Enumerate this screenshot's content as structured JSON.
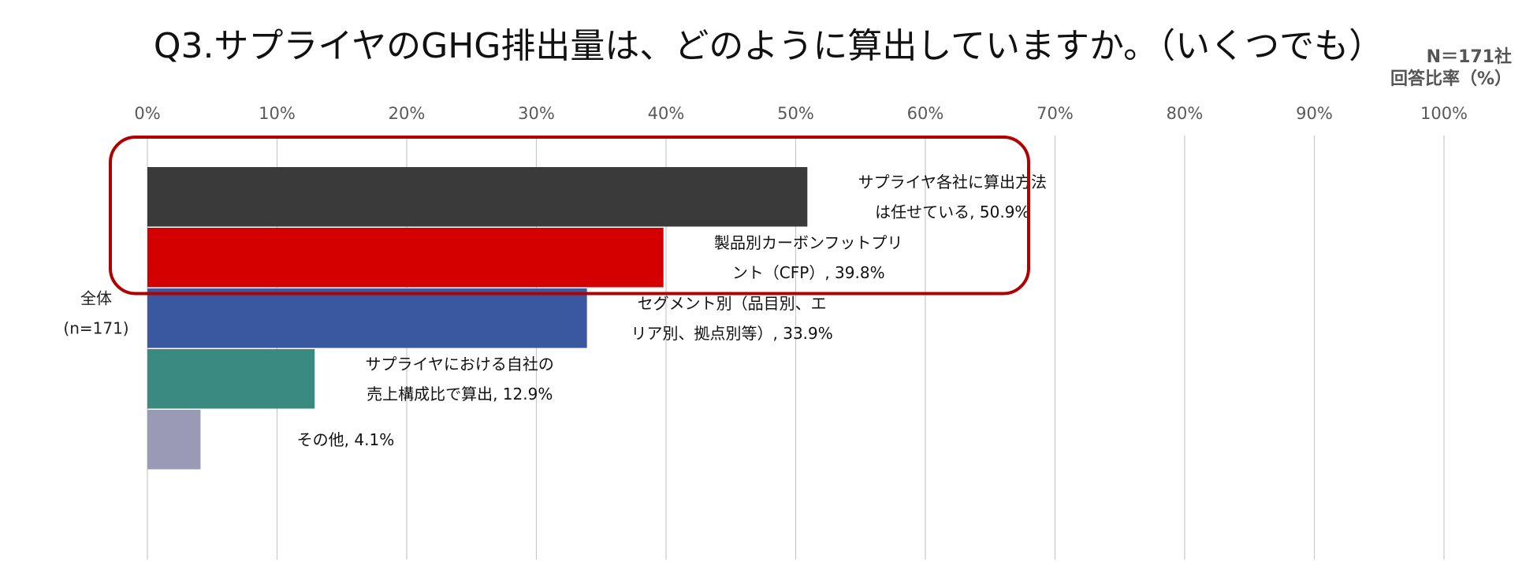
{
  "title": "Q3.サプライヤのGHG排出量は、どのように算出していますか。（いくつでも）",
  "note_n": "N＝171社",
  "note_ratio": "回答比率（%）",
  "chart_data": {
    "type": "bar",
    "orientation": "horizontal",
    "category_label_lines": [
      "全体",
      "(n=171)"
    ],
    "xlim": [
      0,
      100
    ],
    "x_ticks": [
      0,
      10,
      20,
      30,
      40,
      50,
      60,
      70,
      80,
      90,
      100
    ],
    "x_tick_labels": [
      "0%",
      "10%",
      "20%",
      "30%",
      "40%",
      "50%",
      "60%",
      "70%",
      "80%",
      "90%",
      "100%"
    ],
    "grid": "vertical",
    "series": [
      {
        "name": "サプライヤ各社に算出方法は任せている",
        "value": 50.9,
        "color": "#3a3a3a",
        "label_lines": [
          "サプライヤ各社に算出方法",
          "は任せている, 50.9%"
        ]
      },
      {
        "name": "製品別カーボンフットプリント（CFP）",
        "value": 39.8,
        "color": "#d40000",
        "label_lines": [
          "製品別カーボンフットプリ",
          "ント（CFP）, 39.8%"
        ]
      },
      {
        "name": "セグメント別（品目別、エリア別、拠点別等）",
        "value": 33.9,
        "color": "#3a58a0",
        "label_lines": [
          "セグメント別（品目別、エ",
          "リア別、拠点別等）, 33.9%"
        ]
      },
      {
        "name": "サプライヤにおける自社の売上構成比で算出",
        "value": 12.9,
        "color": "#3b8a82",
        "label_lines": [
          "サプライヤにおける自社の",
          "売上構成比で算出, 12.9%"
        ]
      },
      {
        "name": "その他",
        "value": 4.1,
        "color": "#9a9ab5",
        "label_lines": [
          "その他, 4.1%"
        ]
      }
    ],
    "highlight": {
      "color": "#b00000",
      "series_indices": [
        0,
        1
      ]
    }
  }
}
